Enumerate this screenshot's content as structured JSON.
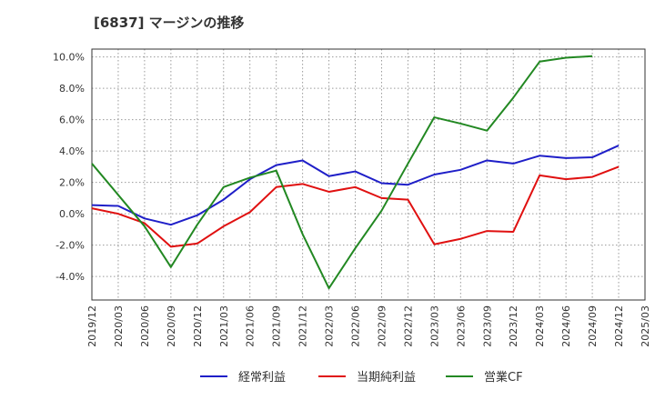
{
  "title": "[6837]  マージンの推移",
  "chart_data": {
    "type": "line",
    "x": [
      "2019/12",
      "2020/03",
      "2020/06",
      "2020/09",
      "2020/12",
      "2021/03",
      "2021/06",
      "2021/09",
      "2021/12",
      "2022/03",
      "2022/06",
      "2022/09",
      "2022/12",
      "2023/03",
      "2023/06",
      "2023/09",
      "2023/12",
      "2024/03",
      "2024/06",
      "2024/09",
      "2024/12",
      "2025/03"
    ],
    "xticks": [
      "2019/12",
      "2020/03",
      "2020/06",
      "2020/09",
      "2020/12",
      "2021/03",
      "2021/06",
      "2021/09",
      "2021/12",
      "2022/03",
      "2022/06",
      "2022/09",
      "2022/12",
      "2023/03",
      "2023/06",
      "2023/09",
      "2023/12",
      "2024/03",
      "2024/06",
      "2024/09",
      "2024/12",
      "2025/03"
    ],
    "yticks": [
      "-4.0%",
      "-2.0%",
      "0.0%",
      "2.0%",
      "4.0%",
      "6.0%",
      "8.0%",
      "10.0%"
    ],
    "ytick_values": [
      -4,
      -2,
      0,
      2,
      4,
      6,
      8,
      10
    ],
    "ylim": [
      -5.5,
      10.5
    ],
    "grid": true,
    "legend_position": "bottom",
    "series": [
      {
        "name": "経常利益",
        "color": "#1f1fc8",
        "values": [
          0.55,
          0.5,
          -0.3,
          -0.7,
          -0.1,
          0.9,
          2.2,
          3.1,
          3.4,
          2.4,
          2.7,
          1.95,
          1.85,
          2.5,
          2.8,
          3.4,
          3.2,
          3.7,
          3.55,
          3.6,
          4.35,
          null
        ]
      },
      {
        "name": "当期純利益",
        "color": "#e01010",
        "values": [
          0.35,
          0.0,
          -0.6,
          -2.1,
          -1.9,
          -0.8,
          0.1,
          1.7,
          1.9,
          1.4,
          1.7,
          1.0,
          0.9,
          -1.95,
          -1.6,
          -1.1,
          -1.15,
          2.45,
          2.2,
          2.35,
          3.0,
          null
        ]
      },
      {
        "name": "営業CF",
        "color": "#228822",
        "values": [
          3.2,
          1.2,
          -0.8,
          -3.4,
          -0.7,
          1.7,
          2.3,
          2.75,
          -1.3,
          -4.75,
          -2.2,
          0.2,
          3.2,
          6.15,
          5.75,
          5.3,
          7.4,
          9.7,
          9.95,
          10.05,
          null,
          null
        ]
      }
    ]
  }
}
